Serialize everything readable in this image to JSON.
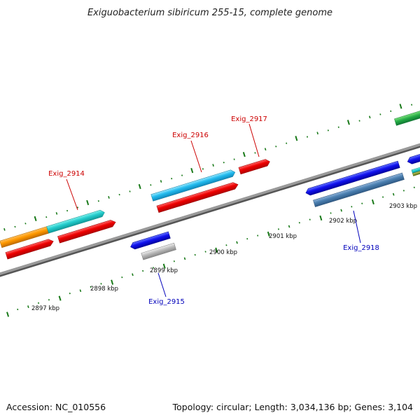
{
  "title": "Exiguobacterium sibiricum 255-15, complete genome",
  "footer": {
    "accession": "Accession: NC_010556",
    "stats": "Topology: circular; Length: 3,034,136 bp; Genes: 3,104"
  },
  "colors": {
    "forward_label": "#cc0000",
    "reverse_label": "#0000bb",
    "backbone": "#888888",
    "ticks": "#1a7a1a"
  },
  "kbp_labels": [
    "2897 kbp",
    "2898 kbp",
    "2899 kbp",
    "2900 kbp",
    "2901 kbp",
    "2902 kbp",
    "2903 kbp"
  ],
  "gene_labels": [
    {
      "name": "Exig_2914",
      "strand": "forward"
    },
    {
      "name": "Exig_2916",
      "strand": "forward"
    },
    {
      "name": "Exig_2917",
      "strand": "forward"
    },
    {
      "name": "Exig_2915",
      "strand": "reverse"
    },
    {
      "name": "Exig_2918",
      "strand": "reverse"
    }
  ]
}
